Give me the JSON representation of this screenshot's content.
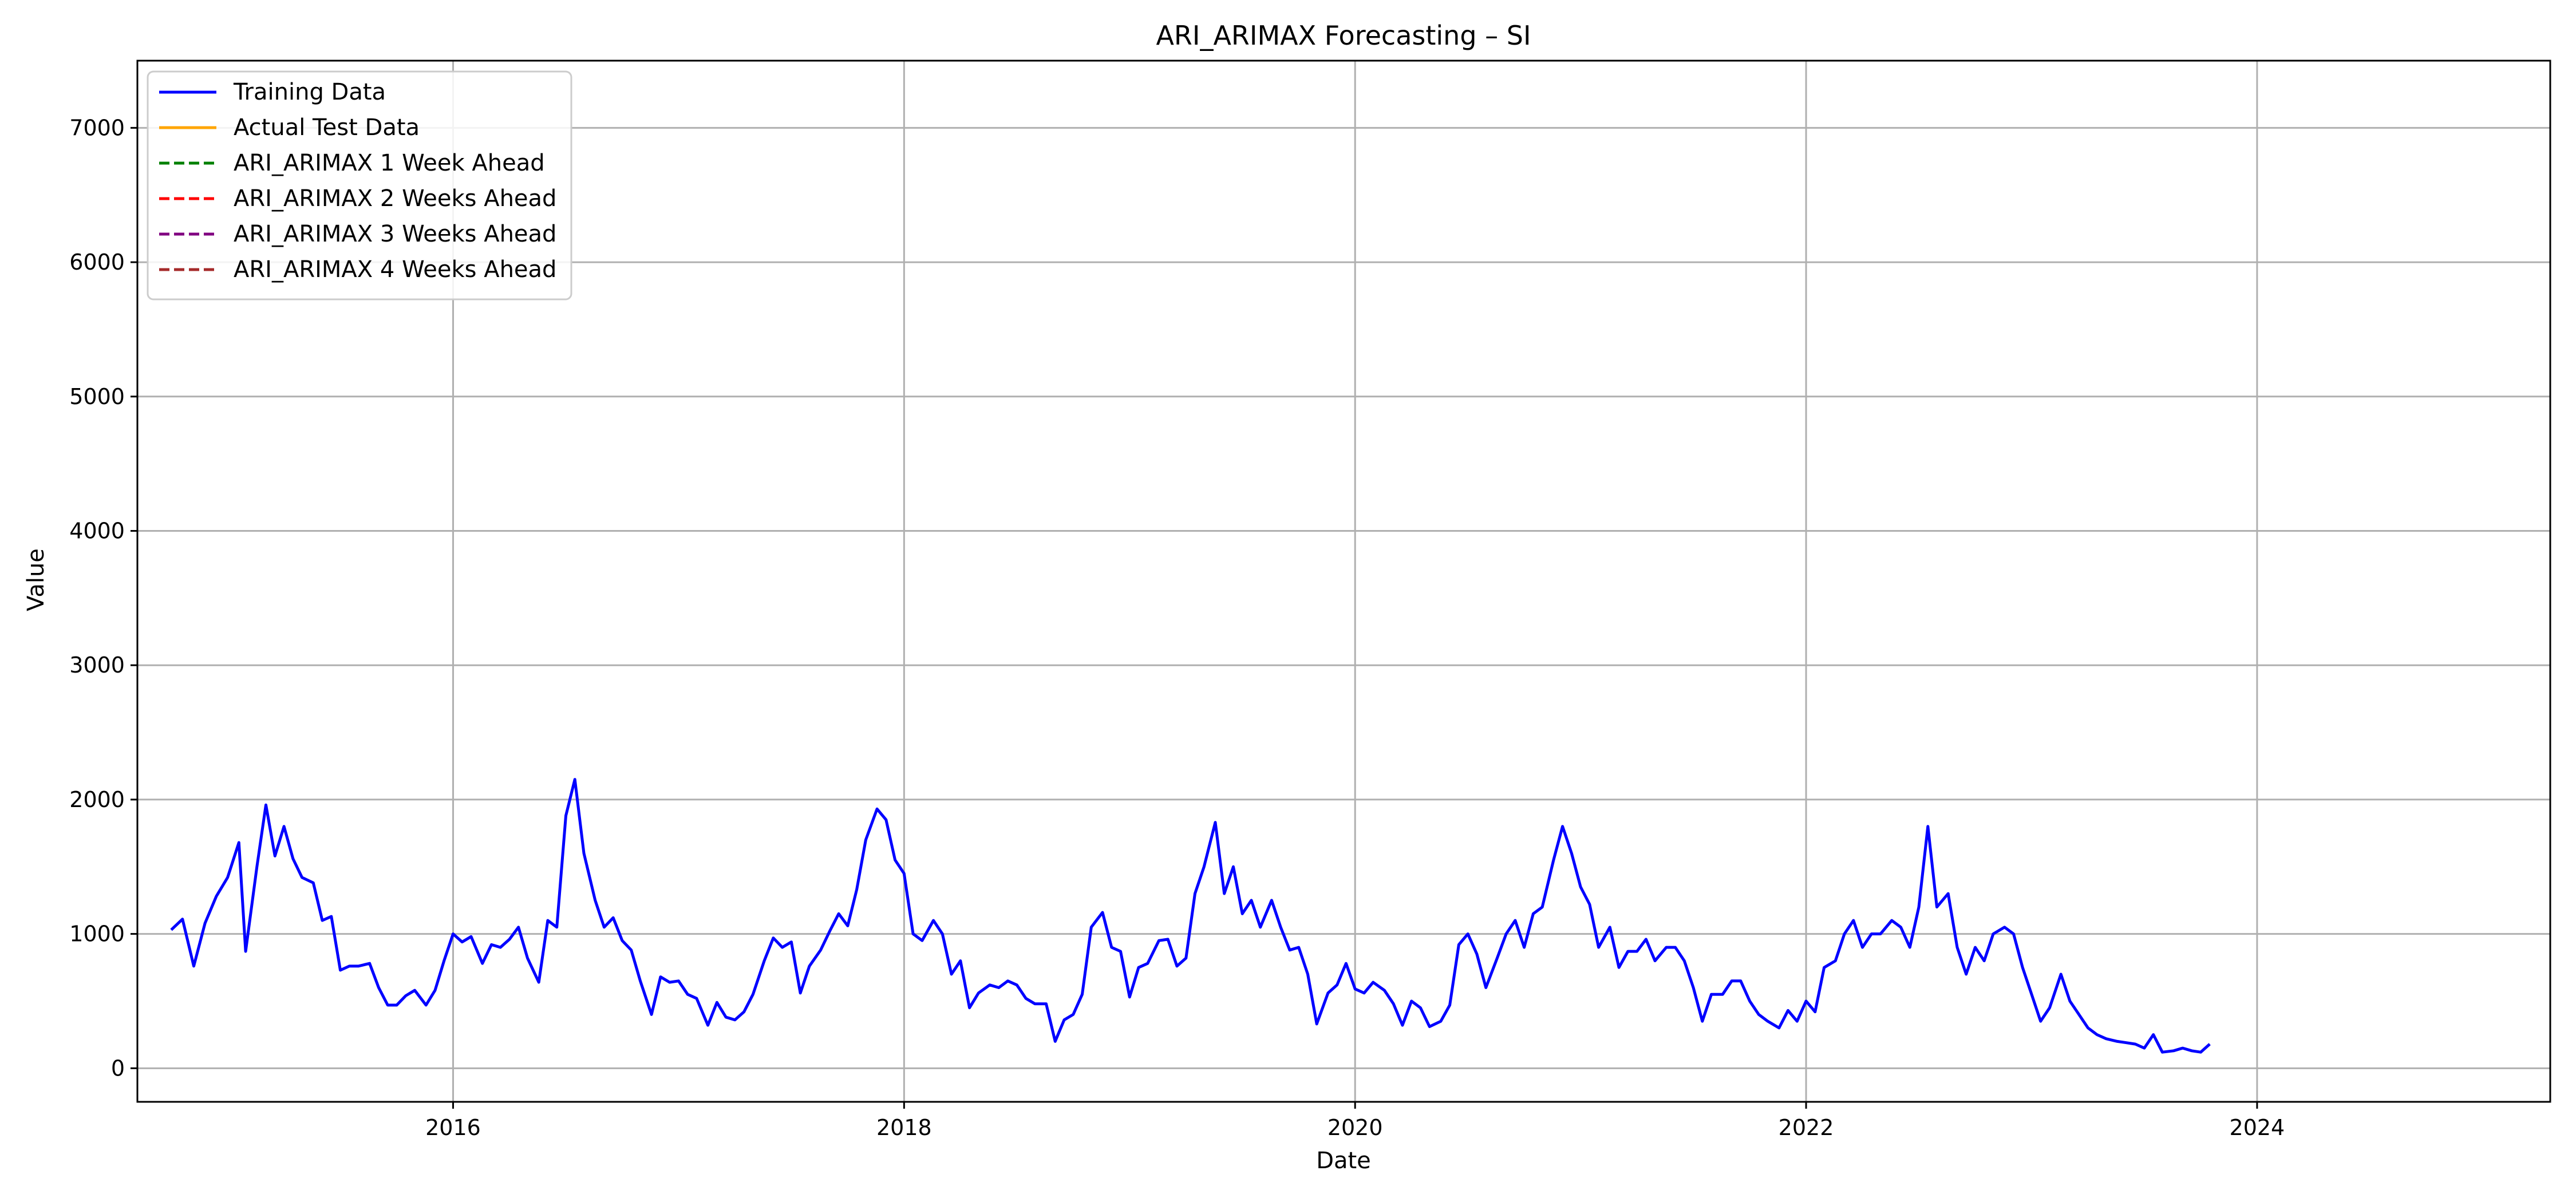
{
  "chart_data": {
    "type": "line",
    "title": "ARI_ARIMAX Forecasting – SI",
    "xlabel": "Date",
    "ylabel": "Value",
    "x_ticks": [
      "2016",
      "2018",
      "2020",
      "2022",
      "2024"
    ],
    "y_ticks": [
      "0",
      "1000",
      "2000",
      "3000",
      "4000",
      "5000",
      "6000",
      "7000"
    ],
    "xlim": [
      2014.6,
      2025.3
    ],
    "ylim": [
      -250,
      7500
    ],
    "grid": true,
    "legend_position": "top-left",
    "series": [
      {
        "name": "Training Data",
        "color": "#0000ff",
        "dash": "solid",
        "points": [
          [
            2014.75,
            1030
          ],
          [
            2014.8,
            1110
          ],
          [
            2014.85,
            760
          ],
          [
            2014.9,
            1080
          ],
          [
            2014.95,
            1280
          ],
          [
            2015.0,
            1420
          ],
          [
            2015.05,
            1680
          ],
          [
            2015.08,
            870
          ],
          [
            2015.13,
            1500
          ],
          [
            2015.17,
            1960
          ],
          [
            2015.21,
            1580
          ],
          [
            2015.25,
            1800
          ],
          [
            2015.29,
            1560
          ],
          [
            2015.33,
            1420
          ],
          [
            2015.38,
            1380
          ],
          [
            2015.42,
            1100
          ],
          [
            2015.46,
            1130
          ],
          [
            2015.5,
            730
          ],
          [
            2015.54,
            760
          ],
          [
            2015.58,
            760
          ],
          [
            2015.63,
            780
          ],
          [
            2015.67,
            600
          ],
          [
            2015.71,
            470
          ],
          [
            2015.75,
            470
          ],
          [
            2015.79,
            540
          ],
          [
            2015.83,
            580
          ],
          [
            2015.88,
            470
          ],
          [
            2015.92,
            580
          ],
          [
            2015.96,
            800
          ],
          [
            2016.0,
            1000
          ],
          [
            2016.04,
            940
          ],
          [
            2016.08,
            980
          ],
          [
            2016.13,
            780
          ],
          [
            2016.17,
            920
          ],
          [
            2016.21,
            900
          ],
          [
            2016.25,
            960
          ],
          [
            2016.29,
            1050
          ],
          [
            2016.33,
            820
          ],
          [
            2016.38,
            640
          ],
          [
            2016.42,
            1100
          ],
          [
            2016.46,
            1050
          ],
          [
            2016.5,
            1880
          ],
          [
            2016.54,
            2150
          ],
          [
            2016.58,
            1600
          ],
          [
            2016.63,
            1250
          ],
          [
            2016.67,
            1050
          ],
          [
            2016.71,
            1120
          ],
          [
            2016.75,
            950
          ],
          [
            2016.79,
            880
          ],
          [
            2016.83,
            650
          ],
          [
            2016.88,
            400
          ],
          [
            2016.92,
            680
          ],
          [
            2016.96,
            640
          ],
          [
            2017.0,
            650
          ],
          [
            2017.04,
            550
          ],
          [
            2017.08,
            520
          ],
          [
            2017.13,
            320
          ],
          [
            2017.17,
            490
          ],
          [
            2017.21,
            380
          ],
          [
            2017.25,
            360
          ],
          [
            2017.29,
            420
          ],
          [
            2017.33,
            550
          ],
          [
            2017.38,
            800
          ],
          [
            2017.42,
            970
          ],
          [
            2017.46,
            900
          ],
          [
            2017.5,
            940
          ],
          [
            2017.54,
            560
          ],
          [
            2017.58,
            760
          ],
          [
            2017.63,
            880
          ],
          [
            2017.67,
            1020
          ],
          [
            2017.71,
            1150
          ],
          [
            2017.75,
            1060
          ],
          [
            2017.79,
            1330
          ],
          [
            2017.83,
            1700
          ],
          [
            2017.88,
            1930
          ],
          [
            2017.92,
            1850
          ],
          [
            2017.96,
            1550
          ],
          [
            2018.0,
            1450
          ],
          [
            2018.04,
            1000
          ],
          [
            2018.08,
            950
          ],
          [
            2018.13,
            1100
          ],
          [
            2018.17,
            1000
          ],
          [
            2018.21,
            700
          ],
          [
            2018.25,
            800
          ],
          [
            2018.29,
            450
          ],
          [
            2018.33,
            560
          ],
          [
            2018.38,
            620
          ],
          [
            2018.42,
            600
          ],
          [
            2018.46,
            650
          ],
          [
            2018.5,
            620
          ],
          [
            2018.54,
            520
          ],
          [
            2018.58,
            480
          ],
          [
            2018.63,
            480
          ],
          [
            2018.67,
            200
          ],
          [
            2018.71,
            360
          ],
          [
            2018.75,
            400
          ],
          [
            2018.79,
            550
          ],
          [
            2018.83,
            1050
          ],
          [
            2018.88,
            1160
          ],
          [
            2018.92,
            900
          ],
          [
            2018.96,
            870
          ],
          [
            2019.0,
            530
          ],
          [
            2019.04,
            750
          ],
          [
            2019.08,
            780
          ],
          [
            2019.13,
            950
          ],
          [
            2019.17,
            960
          ],
          [
            2019.21,
            760
          ],
          [
            2019.25,
            820
          ],
          [
            2019.29,
            1300
          ],
          [
            2019.33,
            1500
          ],
          [
            2019.38,
            1830
          ],
          [
            2019.42,
            1300
          ],
          [
            2019.46,
            1500
          ],
          [
            2019.5,
            1150
          ],
          [
            2019.54,
            1250
          ],
          [
            2019.58,
            1050
          ],
          [
            2019.63,
            1250
          ],
          [
            2019.67,
            1050
          ],
          [
            2019.71,
            880
          ],
          [
            2019.75,
            900
          ],
          [
            2019.79,
            700
          ],
          [
            2019.83,
            330
          ],
          [
            2019.88,
            560
          ],
          [
            2019.92,
            620
          ],
          [
            2019.96,
            780
          ],
          [
            2020.0,
            590
          ],
          [
            2020.04,
            560
          ],
          [
            2020.08,
            640
          ],
          [
            2020.13,
            580
          ],
          [
            2020.17,
            480
          ],
          [
            2020.21,
            320
          ],
          [
            2020.25,
            500
          ],
          [
            2020.29,
            450
          ],
          [
            2020.33,
            310
          ],
          [
            2020.38,
            350
          ],
          [
            2020.42,
            470
          ],
          [
            2020.46,
            920
          ],
          [
            2020.5,
            1000
          ],
          [
            2020.54,
            850
          ],
          [
            2020.58,
            600
          ],
          [
            2020.63,
            820
          ],
          [
            2020.67,
            1000
          ],
          [
            2020.71,
            1100
          ],
          [
            2020.75,
            900
          ],
          [
            2020.79,
            1150
          ],
          [
            2020.83,
            1200
          ],
          [
            2020.88,
            1550
          ],
          [
            2020.92,
            1800
          ],
          [
            2020.96,
            1600
          ],
          [
            2021.0,
            1350
          ],
          [
            2021.04,
            1220
          ],
          [
            2021.08,
            900
          ],
          [
            2021.13,
            1050
          ],
          [
            2021.17,
            750
          ],
          [
            2021.21,
            870
          ],
          [
            2021.25,
            870
          ],
          [
            2021.29,
            960
          ],
          [
            2021.33,
            800
          ],
          [
            2021.38,
            900
          ],
          [
            2021.42,
            900
          ],
          [
            2021.46,
            800
          ],
          [
            2021.5,
            600
          ],
          [
            2021.54,
            350
          ],
          [
            2021.58,
            550
          ],
          [
            2021.63,
            550
          ],
          [
            2021.67,
            650
          ],
          [
            2021.71,
            650
          ],
          [
            2021.75,
            500
          ],
          [
            2021.79,
            400
          ],
          [
            2021.83,
            350
          ],
          [
            2021.88,
            300
          ],
          [
            2021.92,
            430
          ],
          [
            2021.96,
            350
          ],
          [
            2022.0,
            500
          ],
          [
            2022.04,
            420
          ],
          [
            2022.08,
            750
          ],
          [
            2022.13,
            800
          ],
          [
            2022.17,
            1000
          ],
          [
            2022.21,
            1100
          ],
          [
            2022.25,
            900
          ],
          [
            2022.29,
            1000
          ],
          [
            2022.33,
            1000
          ],
          [
            2022.38,
            1100
          ],
          [
            2022.42,
            1050
          ],
          [
            2022.46,
            900
          ],
          [
            2022.5,
            1200
          ],
          [
            2022.54,
            1800
          ],
          [
            2022.58,
            1200
          ],
          [
            2022.63,
            1300
          ],
          [
            2022.67,
            900
          ],
          [
            2022.71,
            700
          ],
          [
            2022.75,
            900
          ],
          [
            2022.79,
            800
          ],
          [
            2022.83,
            1000
          ],
          [
            2022.88,
            1050
          ],
          [
            2022.92,
            1000
          ],
          [
            2022.96,
            750
          ],
          [
            2023.0,
            550
          ],
          [
            2023.04,
            350
          ],
          [
            2023.08,
            450
          ],
          [
            2023.13,
            700
          ],
          [
            2023.17,
            500
          ],
          [
            2023.21,
            400
          ],
          [
            2023.25,
            300
          ],
          [
            2023.29,
            250
          ],
          [
            2023.33,
            220
          ],
          [
            2023.38,
            200
          ],
          [
            2023.42,
            190
          ],
          [
            2023.46,
            180
          ],
          [
            2023.5,
            150
          ],
          [
            2023.54,
            250
          ],
          [
            2023.58,
            120
          ],
          [
            2023.63,
            130
          ],
          [
            2023.67,
            150
          ],
          [
            2023.71,
            130
          ],
          [
            2023.75,
            120
          ],
          [
            2023.79,
            180
          ]
        ]
      },
      {
        "name": "Actual Test Data",
        "color": "#ffa500",
        "dash": "solid",
        "points": []
      },
      {
        "name": "ARI_ARIMAX 1 Week Ahead",
        "color": "#008000",
        "dash": "dashed",
        "points": []
      },
      {
        "name": "ARI_ARIMAX 2 Weeks Ahead",
        "color": "#ff0000",
        "dash": "dashed",
        "points": []
      },
      {
        "name": "ARI_ARIMAX 3 Weeks Ahead",
        "color": "#800080",
        "dash": "dashed",
        "points": []
      },
      {
        "name": "ARI_ARIMAX 4 Weeks Ahead",
        "color": "#a52a2a",
        "dash": "dashed",
        "points": []
      }
    ]
  }
}
